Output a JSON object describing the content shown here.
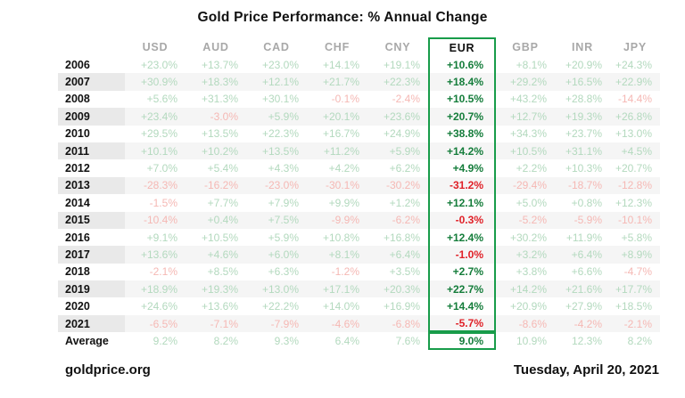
{
  "title": "Gold Price Performance: % Annual Change",
  "footer": {
    "source": "goldprice.org",
    "date": "Tuesday, April 20, 2021"
  },
  "table": {
    "columns": [
      "USD",
      "AUD",
      "CAD",
      "CHF",
      "CNY",
      "EUR",
      "GBP",
      "INR",
      "JPY"
    ],
    "highlighted_column": "EUR",
    "rows": [
      {
        "label": "2006",
        "values": [
          "+23.0%",
          "+13.7%",
          "+23.0%",
          "+14.1%",
          "+19.1%",
          "+10.6%",
          "+8.1%",
          "+20.9%",
          "+24.3%"
        ]
      },
      {
        "label": "2007",
        "values": [
          "+30.9%",
          "+18.3%",
          "+12.1%",
          "+21.7%",
          "+22.3%",
          "+18.4%",
          "+29.2%",
          "+16.5%",
          "+22.9%"
        ]
      },
      {
        "label": "2008",
        "values": [
          "+5.6%",
          "+31.3%",
          "+30.1%",
          "-0.1%",
          "-2.4%",
          "+10.5%",
          "+43.2%",
          "+28.8%",
          "-14.4%"
        ]
      },
      {
        "label": "2009",
        "values": [
          "+23.4%",
          "-3.0%",
          "+5.9%",
          "+20.1%",
          "+23.6%",
          "+20.7%",
          "+12.7%",
          "+19.3%",
          "+26.8%"
        ]
      },
      {
        "label": "2010",
        "values": [
          "+29.5%",
          "+13.5%",
          "+22.3%",
          "+16.7%",
          "+24.9%",
          "+38.8%",
          "+34.3%",
          "+23.7%",
          "+13.0%"
        ]
      },
      {
        "label": "2011",
        "values": [
          "+10.1%",
          "+10.2%",
          "+13.5%",
          "+11.2%",
          "+5.9%",
          "+14.2%",
          "+10.5%",
          "+31.1%",
          "+4.5%"
        ]
      },
      {
        "label": "2012",
        "values": [
          "+7.0%",
          "+5.4%",
          "+4.3%",
          "+4.2%",
          "+6.2%",
          "+4.9%",
          "+2.2%",
          "+10.3%",
          "+20.7%"
        ]
      },
      {
        "label": "2013",
        "values": [
          "-28.3%",
          "-16.2%",
          "-23.0%",
          "-30.1%",
          "-30.2%",
          "-31.2%",
          "-29.4%",
          "-18.7%",
          "-12.8%"
        ]
      },
      {
        "label": "2014",
        "values": [
          "-1.5%",
          "+7.7%",
          "+7.9%",
          "+9.9%",
          "+1.2%",
          "+12.1%",
          "+5.0%",
          "+0.8%",
          "+12.3%"
        ]
      },
      {
        "label": "2015",
        "values": [
          "-10.4%",
          "+0.4%",
          "+7.5%",
          "-9.9%",
          "-6.2%",
          "-0.3%",
          "-5.2%",
          "-5.9%",
          "-10.1%"
        ]
      },
      {
        "label": "2016",
        "values": [
          "+9.1%",
          "+10.5%",
          "+5.9%",
          "+10.8%",
          "+16.8%",
          "+12.4%",
          "+30.2%",
          "+11.9%",
          "+5.8%"
        ]
      },
      {
        "label": "2017",
        "values": [
          "+13.6%",
          "+4.6%",
          "+6.0%",
          "+8.1%",
          "+6.4%",
          "-1.0%",
          "+3.2%",
          "+6.4%",
          "+8.9%"
        ]
      },
      {
        "label": "2018",
        "values": [
          "-2.1%",
          "+8.5%",
          "+6.3%",
          "-1.2%",
          "+3.5%",
          "+2.7%",
          "+3.8%",
          "+6.6%",
          "-4.7%"
        ]
      },
      {
        "label": "2019",
        "values": [
          "+18.9%",
          "+19.3%",
          "+13.0%",
          "+17.1%",
          "+20.3%",
          "+22.7%",
          "+14.2%",
          "+21.6%",
          "+17.7%"
        ]
      },
      {
        "label": "2020",
        "values": [
          "+24.6%",
          "+13.6%",
          "+22.2%",
          "+14.0%",
          "+16.9%",
          "+14.4%",
          "+20.9%",
          "+27.9%",
          "+18.5%"
        ]
      },
      {
        "label": "2021",
        "values": [
          "-6.5%",
          "-7.1%",
          "-7.9%",
          "-4.6%",
          "-6.8%",
          "-5.7%",
          "-8.6%",
          "-4.2%",
          "-2.1%"
        ]
      },
      {
        "label": "Average",
        "values": [
          "9.2%",
          "8.2%",
          "9.3%",
          "6.4%",
          "7.6%",
          "9.0%",
          "10.9%",
          "12.3%",
          "8.2%"
        ]
      }
    ]
  },
  "colors": {
    "highlight_border": "#189c4a",
    "positive_faded": "#b3d9be",
    "negative_faded": "#f5b8b4",
    "positive_bold": "#157d3b",
    "negative_bold": "#e02128",
    "stripe_row": "#f5f5f5",
    "stripe_year_cell": "#e9e9e9",
    "header_text": "#a8a8a8"
  },
  "chart_data": {
    "type": "table",
    "title": "Gold Price Performance: % Annual Change",
    "unit": "%",
    "categories": [
      "2006",
      "2007",
      "2008",
      "2009",
      "2010",
      "2011",
      "2012",
      "2013",
      "2014",
      "2015",
      "2016",
      "2017",
      "2018",
      "2019",
      "2020",
      "2021"
    ],
    "highlighted_series": "EUR",
    "series": [
      {
        "name": "USD",
        "values": [
          23.0,
          30.9,
          5.6,
          23.4,
          29.5,
          10.1,
          7.0,
          -28.3,
          -1.5,
          -10.4,
          9.1,
          13.6,
          -2.1,
          18.9,
          24.6,
          -6.5
        ],
        "average": 9.2
      },
      {
        "name": "AUD",
        "values": [
          13.7,
          18.3,
          31.3,
          -3.0,
          13.5,
          10.2,
          5.4,
          -16.2,
          7.7,
          0.4,
          10.5,
          4.6,
          8.5,
          19.3,
          13.6,
          -7.1
        ],
        "average": 8.2
      },
      {
        "name": "CAD",
        "values": [
          23.0,
          12.1,
          30.1,
          5.9,
          22.3,
          13.5,
          4.3,
          -23.0,
          7.9,
          7.5,
          5.9,
          6.0,
          6.3,
          13.0,
          22.2,
          -7.9
        ],
        "average": 9.3
      },
      {
        "name": "CHF",
        "values": [
          14.1,
          21.7,
          -0.1,
          20.1,
          16.7,
          11.2,
          4.2,
          -30.1,
          9.9,
          -9.9,
          10.8,
          8.1,
          -1.2,
          17.1,
          14.0,
          -4.6
        ],
        "average": 6.4
      },
      {
        "name": "CNY",
        "values": [
          19.1,
          22.3,
          -2.4,
          23.6,
          24.9,
          5.9,
          6.2,
          -30.2,
          1.2,
          -6.2,
          16.8,
          6.4,
          3.5,
          20.3,
          16.9,
          -6.8
        ],
        "average": 7.6
      },
      {
        "name": "EUR",
        "values": [
          10.6,
          18.4,
          10.5,
          20.7,
          38.8,
          14.2,
          4.9,
          -31.2,
          12.1,
          -0.3,
          12.4,
          -1.0,
          2.7,
          22.7,
          14.4,
          -5.7
        ],
        "average": 9.0
      },
      {
        "name": "GBP",
        "values": [
          8.1,
          29.2,
          43.2,
          12.7,
          34.3,
          10.5,
          2.2,
          -29.4,
          5.0,
          -5.2,
          30.2,
          3.2,
          3.8,
          14.2,
          20.9,
          -8.6
        ],
        "average": 10.9
      },
      {
        "name": "INR",
        "values": [
          20.9,
          16.5,
          28.8,
          19.3,
          23.7,
          31.1,
          10.3,
          -18.7,
          0.8,
          -5.9,
          11.9,
          6.4,
          6.6,
          21.6,
          27.9,
          -4.2
        ],
        "average": 12.3
      },
      {
        "name": "JPY",
        "values": [
          24.3,
          22.9,
          -14.4,
          26.8,
          13.0,
          4.5,
          20.7,
          -12.8,
          12.3,
          -10.1,
          5.8,
          8.9,
          -4.7,
          17.7,
          18.5,
          -2.1
        ],
        "average": 8.2
      }
    ]
  }
}
